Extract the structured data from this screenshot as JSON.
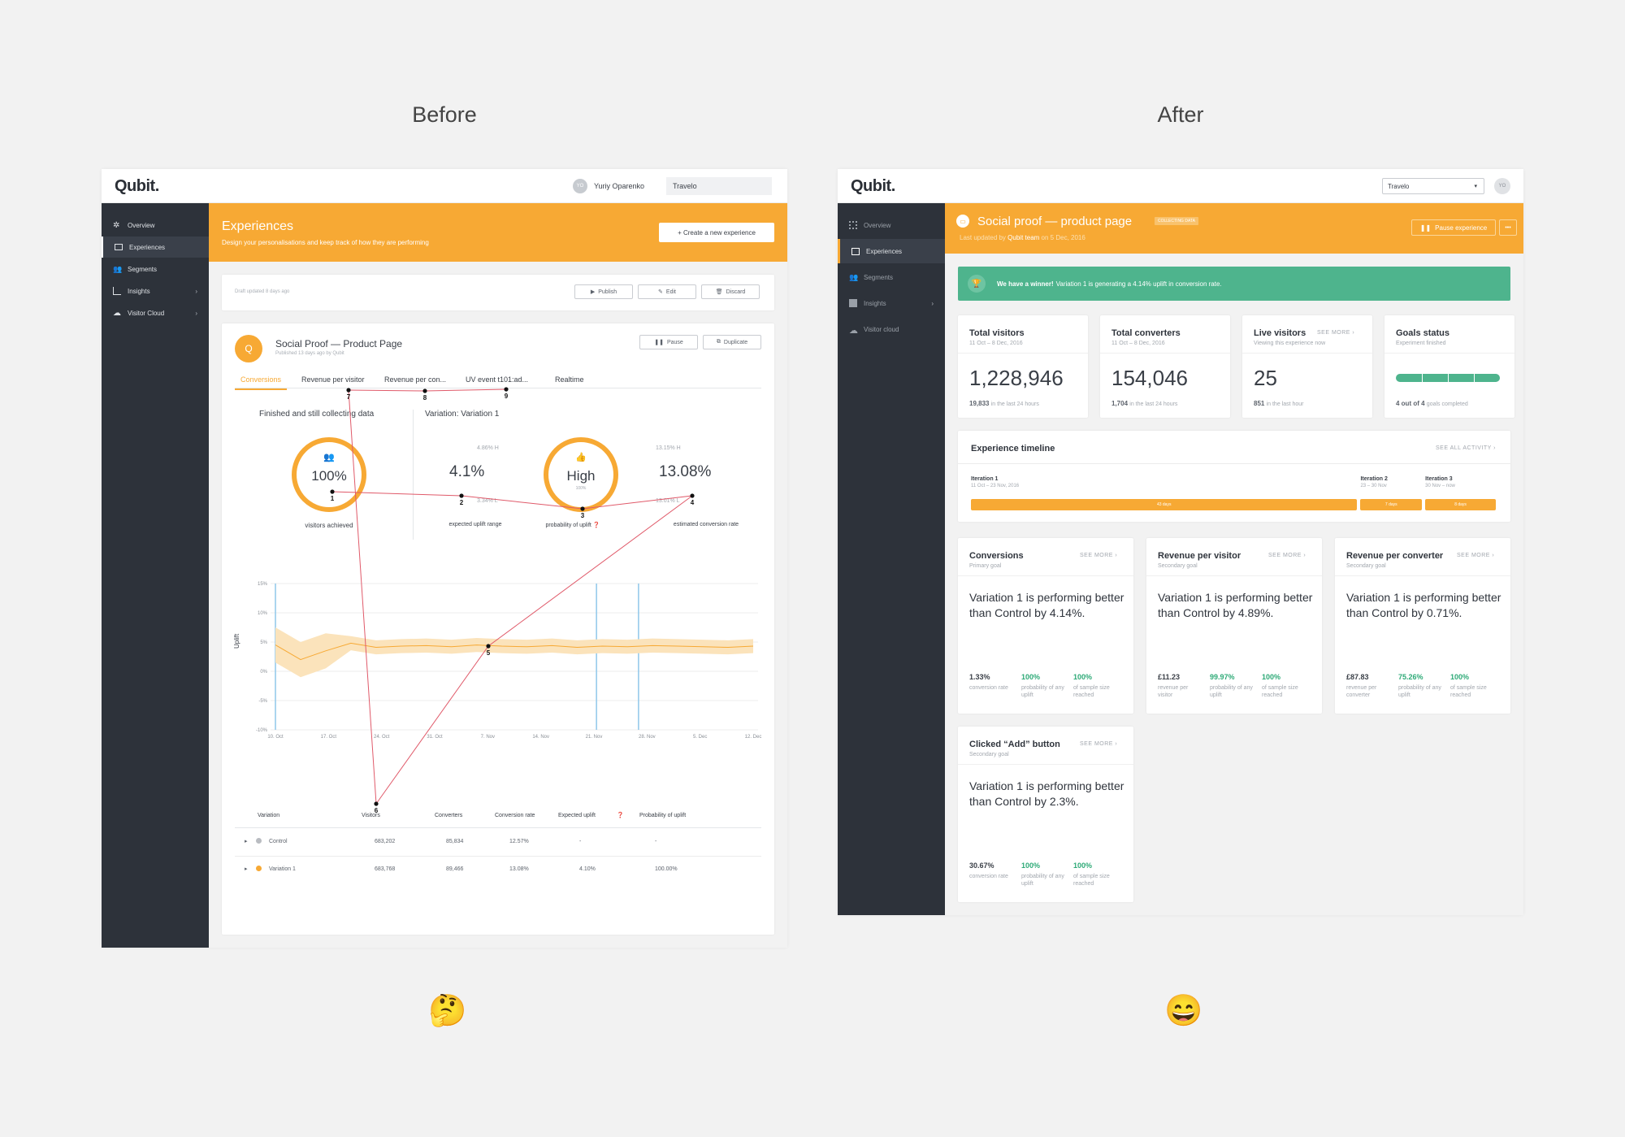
{
  "headings": {
    "before": "Before",
    "after": "After"
  },
  "emoji": {
    "before": "🤔",
    "after": "😄"
  },
  "before": {
    "logo": "Qubit.",
    "user": {
      "initials": "YO",
      "name": "Yuriy Oparenko"
    },
    "account": "Travelo",
    "nav": [
      {
        "label": "Overview",
        "icon": "overview-icon"
      },
      {
        "label": "Experiences",
        "icon": "monitor-icon"
      },
      {
        "label": "Segments",
        "icon": "users-icon"
      },
      {
        "label": "Insights",
        "icon": "bar-chart-icon",
        "arrow": "›"
      },
      {
        "label": "Visitor Cloud",
        "icon": "cloud-icon",
        "arrow": "›"
      }
    ],
    "header": {
      "title": "Experiences",
      "subtitle": "Design your personalisations and keep track of how they are performing",
      "create": "+ Create a new experience"
    },
    "draft": {
      "text": "Draft updated 8 days ago",
      "publish": "Publish",
      "edit": "Edit",
      "discard": "Discard"
    },
    "experience": {
      "badge": "Q",
      "title": "Social Proof — Product Page",
      "published": "Published 13 days ago by Qubit",
      "pause": "Pause",
      "duplicate": "Duplicate"
    },
    "tabs": [
      "Conversions",
      "Revenue per visitor",
      "Revenue per con...",
      "UV event t101:ad...",
      "Realtime"
    ],
    "status": "Finished and still collecting data",
    "variation": "Variation: Variation 1",
    "gauge1": {
      "value": "100%",
      "label": "visitors achieved"
    },
    "uplift": {
      "value": "4.1%",
      "high": "4.86% H",
      "low": "3.34% L",
      "label": "expected uplift range"
    },
    "gauge2": {
      "value": "High",
      "small": "100%",
      "label": "probability of uplift"
    },
    "conv": {
      "value": "13.08%",
      "high": "13.15% H",
      "low": "13.01% L",
      "label": "estimated conversion rate"
    },
    "path_numbers": [
      "1",
      "2",
      "3",
      "4",
      "5",
      "6",
      "7",
      "8",
      "9"
    ],
    "chart_data": {
      "type": "area",
      "ylabel": "Uplift",
      "yticks": [
        "15%",
        "10%",
        "5%",
        "0%",
        "-5%",
        "-10%"
      ],
      "xticks": [
        "10. Oct",
        "17. Oct",
        "24. Oct",
        "31. Oct",
        "7. Nov",
        "14. Nov",
        "21. Nov",
        "28. Nov",
        "5. Dec",
        "12. Dec"
      ],
      "ylim": [
        -10,
        15
      ],
      "series": [
        {
          "values": [
            4.5,
            2,
            3.5,
            4.8,
            4.1,
            4.3,
            4.4,
            4.2,
            4.5,
            4.3,
            4.2,
            4.4,
            4.1,
            4.3,
            4.2,
            4.4,
            4.3,
            4.2,
            4.1,
            4.3
          ]
        }
      ]
    },
    "table": {
      "headers": [
        "Variation",
        "Visitors",
        "Converters",
        "Conversion rate",
        "Expected uplift",
        "Probability of uplift"
      ],
      "rows": [
        {
          "name": "Control",
          "color": "#b9bcc1",
          "visitors": "683,202",
          "converters": "85,834",
          "rate": "12.57%",
          "uplift": "-",
          "prob": "-"
        },
        {
          "name": "Variation 1",
          "color": "#f7a934",
          "visitors": "683,768",
          "converters": "89,466",
          "rate": "13.08%",
          "uplift": "4.10%",
          "prob": "100.00%"
        }
      ]
    }
  },
  "after": {
    "logo": "Qubit.",
    "account": "Travelo",
    "avatar": "YO",
    "nav": [
      {
        "label": "Overview",
        "icon": "overview-icon"
      },
      {
        "label": "Experiences",
        "icon": "monitor-icon"
      },
      {
        "label": "Segments",
        "icon": "users-icon"
      },
      {
        "label": "Insights",
        "icon": "bar-chart-icon",
        "arrow": "›"
      },
      {
        "label": "Visitor cloud",
        "icon": "cloud-icon"
      }
    ],
    "header": {
      "title": "Social proof — product page",
      "badge": "COLLECTING DATA",
      "updated_prefix": "Last updated by",
      "updated_by": "Qubit team",
      "updated_on": "on 5 Dec, 2016",
      "pause": "Pause experience",
      "more": "•••"
    },
    "banner": {
      "strong": "We have a winner!",
      "text": "Variation 1 is generating a 4.14% uplift in conversion rate."
    },
    "metrics": [
      {
        "title": "Total visitors",
        "sub": "11 Oct – 8 Dec, 2016",
        "big": "1,228,946",
        "foot_strong": "19,833",
        "foot": "in the last 24 hours"
      },
      {
        "title": "Total converters",
        "sub": "11 Oct – 8 Dec, 2016",
        "big": "154,046",
        "foot_strong": "1,704",
        "foot": "in the last 24 hours"
      },
      {
        "title": "Live visitors",
        "see": "SEE MORE",
        "sub": "Viewing this experience now",
        "big": "25",
        "foot_strong": "851",
        "foot": "in the last hour"
      },
      {
        "title": "Goals status",
        "sub": "Experiment finished",
        "foot_strong": "4 out of 4",
        "foot": "goals completed",
        "progress": 1.0
      }
    ],
    "timeline": {
      "title": "Experience timeline",
      "see": "SEE ALL ACTIVITY",
      "iterations": [
        {
          "name": "Iteration 1",
          "dates": "11 Oct – 23 Nov, 2016",
          "bar": "43 days"
        },
        {
          "name": "Iteration 2",
          "dates": "23 – 30 Nov",
          "bar": "7 days"
        },
        {
          "name": "Iteration 3",
          "dates": "30 Nov – now",
          "bar": "8 days"
        }
      ]
    },
    "goals": [
      {
        "title": "Conversions",
        "sub": "Primary goal",
        "see": "SEE MORE",
        "body": "Variation 1 is performing better than Control by 4.14%.",
        "stats": [
          {
            "v": "1.33%",
            "l": "conversion rate",
            "g": false
          },
          {
            "v": "100%",
            "l": "probability of any uplift",
            "g": true
          },
          {
            "v": "100%",
            "l": "of sample size reached",
            "g": true
          }
        ]
      },
      {
        "title": "Revenue per visitor",
        "sub": "Secondary goal",
        "see": "SEE MORE",
        "body": "Variation 1 is performing better than Control by 4.89%.",
        "stats": [
          {
            "v": "£11.23",
            "l": "revenue per visitor",
            "g": false
          },
          {
            "v": "99.97%",
            "l": "probability of any uplift",
            "g": true
          },
          {
            "v": "100%",
            "l": "of sample size reached",
            "g": true
          }
        ]
      },
      {
        "title": "Revenue per converter",
        "sub": "Secondary goal",
        "see": "SEE MORE",
        "body": "Variation 1 is performing better than Control by 0.71%.",
        "stats": [
          {
            "v": "£87.83",
            "l": "revenue per converter",
            "g": false
          },
          {
            "v": "75.26%",
            "l": "probability of any uplift",
            "g": true
          },
          {
            "v": "100%",
            "l": "of sample size reached",
            "g": true
          }
        ]
      },
      {
        "title": "Clicked “Add” button",
        "sub": "Secondary goal",
        "see": "SEE MORE",
        "body": "Variation 1 is performing better than Control by 2.3%.",
        "stats": [
          {
            "v": "30.67%",
            "l": "conversion rate",
            "g": false
          },
          {
            "v": "100%",
            "l": "probability of any uplift",
            "g": true
          },
          {
            "v": "100%",
            "l": "of sample size reached",
            "g": true
          }
        ]
      }
    ]
  }
}
